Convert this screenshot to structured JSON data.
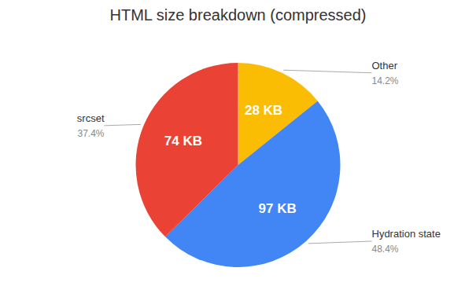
{
  "chart_data": {
    "type": "pie",
    "title": "HTML size breakdown (compressed)",
    "categories": [
      "Other",
      "Hydration state",
      "srcset"
    ],
    "values": [
      14.2,
      48.4,
      37.4
    ],
    "value_labels": [
      "14.2%",
      "48.4%",
      "37.4%"
    ],
    "data_labels": true,
    "size_labels": [
      "28 KB",
      "97 KB",
      "74 KB"
    ],
    "colors": [
      "#FBBC04",
      "#4285F4",
      "#EA4335"
    ]
  }
}
